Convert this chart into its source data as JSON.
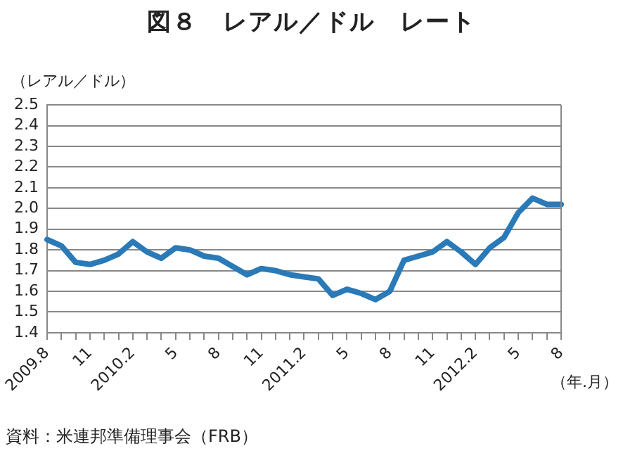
{
  "chart_data": {
    "type": "line",
    "title": "図８　レアル／ドル　レート",
    "ylabel": "（レアル／ドル）",
    "xlabel": "（年.月）",
    "categories": [
      "2009.8",
      null,
      null,
      "11",
      null,
      null,
      "2010.2",
      null,
      null,
      "5",
      null,
      null,
      "8",
      null,
      null,
      "11",
      null,
      null,
      "2011.2",
      null,
      null,
      "5",
      null,
      null,
      "8",
      null,
      null,
      "11",
      null,
      null,
      "2012.2",
      null,
      null,
      "5",
      null,
      null,
      "8"
    ],
    "series": [
      {
        "color": "#2a7ab8",
        "values": [
          1.85,
          1.82,
          1.74,
          1.73,
          1.75,
          1.78,
          1.84,
          1.79,
          1.76,
          1.81,
          1.8,
          1.77,
          1.76,
          1.72,
          1.68,
          1.71,
          1.7,
          1.68,
          1.67,
          1.66,
          1.58,
          1.61,
          1.59,
          1.56,
          1.6,
          1.75,
          1.77,
          1.79,
          1.84,
          1.79,
          1.73,
          1.81,
          1.86,
          1.98,
          2.05,
          2.02,
          2.02
        ]
      }
    ],
    "ylim": [
      1.4,
      2.5
    ],
    "yticks": [
      1.4,
      1.5,
      1.6,
      1.7,
      1.8,
      1.9,
      {
        "value": 2,
        "label": "2.0"
      },
      2.1,
      2.2,
      2.3,
      2.4,
      2.5
    ],
    "grid": "y",
    "legend": false,
    "marker": "none",
    "line_style": "solid",
    "annotations": [
      "資料：米連邦準備理事会（FRB）"
    ]
  }
}
